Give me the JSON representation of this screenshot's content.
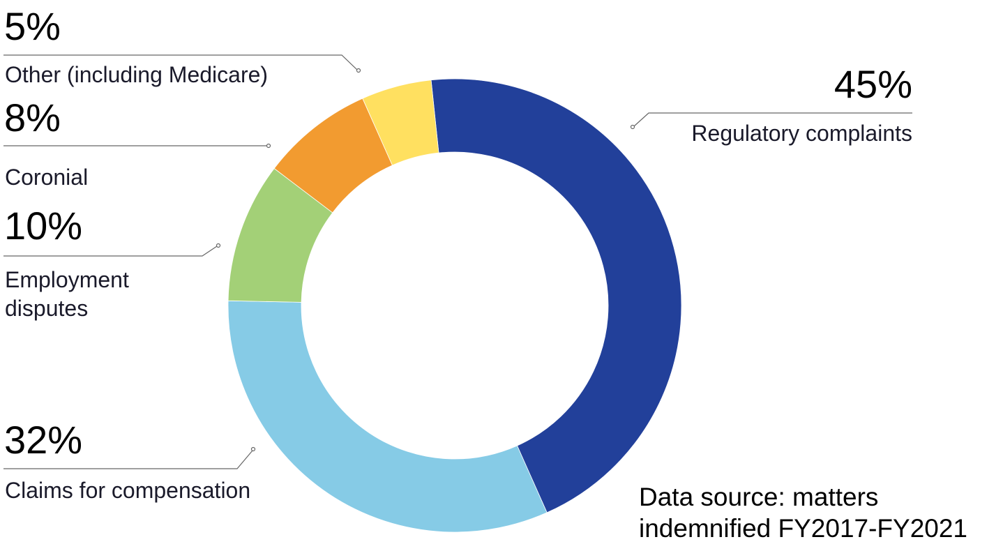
{
  "chart_data": {
    "type": "pie",
    "donut": true,
    "categories": [
      "Regulatory complaints",
      "Claims for compensation",
      "Employment disputes",
      "Coronial",
      "Other (including Medicare)"
    ],
    "values": [
      45,
      32,
      10,
      8,
      5
    ],
    "value_labels": [
      "45%",
      "32%",
      "10%",
      "8%",
      "5%"
    ],
    "colors": [
      "#22409A",
      "#86CBE6",
      "#A3D077",
      "#F29B30",
      "#FFE060"
    ],
    "employment_label_lines": [
      "Employment",
      "disputes"
    ],
    "unit": "%",
    "legend": "none",
    "annotation_lines": [
      "Data source: matters",
      "indemnified FY2017-FY2021"
    ]
  }
}
